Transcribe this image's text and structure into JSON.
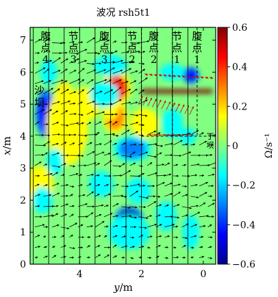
{
  "chart_data": {
    "type": "heatmap",
    "title": "波况 rsh5t1",
    "xlabel_var": "y",
    "xlabel_unit": "/m",
    "ylabel_var": "x",
    "ylabel_unit": "/m",
    "xlim": [
      5.6,
      -0.4
    ],
    "ylim": [
      0,
      7.4
    ],
    "x_ticks": [
      4,
      2,
      0
    ],
    "y_ticks": [
      0,
      1,
      2,
      3,
      4,
      5,
      6,
      7
    ],
    "colorbar": {
      "label": "Ω/s⁻¹",
      "range": [
        -0.6,
        0.6
      ],
      "ticks": [
        0.6,
        0.4,
        0.2,
        0,
        -0.2,
        -0.4,
        -0.6
      ],
      "tick_labels": [
        "0.6",
        "0.4",
        "0.2",
        "0",
        "−0.2",
        "−0.4",
        "−0.6"
      ]
    },
    "colormap": [
      "#00008f",
      "#0000ff",
      "#0080ff",
      "#00ffff",
      "#80ff80",
      "#ffff00",
      "#ff8000",
      "#ff0000",
      "#800000"
    ],
    "vertical_lines_y": [
      5.5,
      5.0,
      4.5,
      4.0,
      3.5,
      3.0,
      2.5,
      2.0,
      1.5,
      1.0,
      0.5
    ],
    "dashed_lines_y": [
      2.0,
      1.0,
      0.2
    ],
    "section_labels": [
      {
        "y": 5.1,
        "text": "腹点4"
      },
      {
        "y": 4.2,
        "text": "节点3"
      },
      {
        "y": 3.2,
        "text": "腹点3"
      },
      {
        "y": 2.3,
        "text": "节点2"
      },
      {
        "y": 1.6,
        "text": "腹点2"
      },
      {
        "y": 0.85,
        "text": "节点1"
      },
      {
        "y": 0.2,
        "text": "腹点1"
      }
    ],
    "sandbar_label": {
      "x": 5.2,
      "y": 5.3,
      "text": "沙坝"
    },
    "dike_label": {
      "x": 4.0,
      "y": -0.35,
      "text": "丁坝"
    },
    "vorticity_blobs": [
      {
        "y": 5.1,
        "x": 4.7,
        "value": -0.45,
        "ry": 0.25,
        "rx": 0.55
      },
      {
        "y": 4.5,
        "x": 5.1,
        "value": 0.25,
        "ry": 0.25,
        "rx": 0.45
      },
      {
        "y": 4.6,
        "x": 3.85,
        "value": 0.35,
        "ry": 0.22,
        "rx": 0.3
      },
      {
        "y": 4.4,
        "x": 4.3,
        "value": 0.18,
        "ry": 0.5,
        "rx": 0.9
      },
      {
        "y": 2.8,
        "x": 5.5,
        "value": 0.38,
        "ry": 0.35,
        "rx": 0.4
      },
      {
        "y": 2.85,
        "x": 4.6,
        "value": 0.28,
        "ry": 0.3,
        "rx": 0.4
      },
      {
        "y": 3.8,
        "x": 5.0,
        "value": 0.18,
        "ry": 0.35,
        "rx": 0.4
      },
      {
        "y": 5.3,
        "x": 2.4,
        "value": 0.2,
        "ry": 0.35,
        "rx": 0.5
      },
      {
        "y": 3.0,
        "x": 4.9,
        "value": 0.2,
        "ry": 0.2,
        "rx": 0.3
      },
      {
        "y": 1.9,
        "x": 4.4,
        "value": 0.18,
        "ry": 0.35,
        "rx": 0.35
      },
      {
        "y": 2.3,
        "x": 3.6,
        "value": -0.28,
        "ry": 0.45,
        "rx": 0.3
      },
      {
        "y": 3.3,
        "x": 2.5,
        "value": -0.18,
        "ry": 0.3,
        "rx": 0.3
      },
      {
        "y": 2.1,
        "x": 2.3,
        "value": -0.22,
        "ry": 0.3,
        "rx": 0.3
      },
      {
        "y": 3.2,
        "x": 5.3,
        "value": -0.18,
        "ry": 0.35,
        "rx": 0.3
      },
      {
        "y": 2.4,
        "x": 1.4,
        "value": -0.6,
        "ry": 0.35,
        "rx": 0.3
      },
      {
        "y": 2.4,
        "x": 1.0,
        "value": -0.18,
        "ry": 0.5,
        "rx": 0.4
      },
      {
        "y": 0.4,
        "x": 5.9,
        "value": -0.5,
        "ry": 0.2,
        "rx": 0.2
      },
      {
        "y": 1.0,
        "x": 6.0,
        "value": -0.18,
        "ry": 0.3,
        "rx": 0.2
      },
      {
        "y": 0.5,
        "x": 4.0,
        "value": -0.18,
        "ry": 0.2,
        "rx": 0.2
      },
      {
        "y": 1.2,
        "x": 1.5,
        "value": -0.15,
        "ry": 0.25,
        "rx": 0.35
      },
      {
        "y": 0.4,
        "x": 1.0,
        "value": -0.15,
        "ry": 0.2,
        "rx": 0.4
      },
      {
        "y": 5.2,
        "x": 2.0,
        "value": -0.2,
        "ry": 0.25,
        "rx": 0.3
      },
      {
        "y": 5.0,
        "x": 6.0,
        "value": -0.15,
        "ry": 0.2,
        "rx": 0.3
      },
      {
        "y": 3.0,
        "x": 6.2,
        "value": -0.15,
        "ry": 0.4,
        "rx": 0.25
      },
      {
        "y": 4.8,
        "x": 3.2,
        "value": -0.15,
        "ry": 0.2,
        "rx": 0.3
      },
      {
        "y": 1.0,
        "x": 4.4,
        "value": -0.18,
        "ry": 0.25,
        "rx": 0.35
      }
    ],
    "near_field_red_band": {
      "x": 5.4,
      "y_from": 2.0,
      "y_to": -0.3,
      "value": 0.55
    }
  }
}
